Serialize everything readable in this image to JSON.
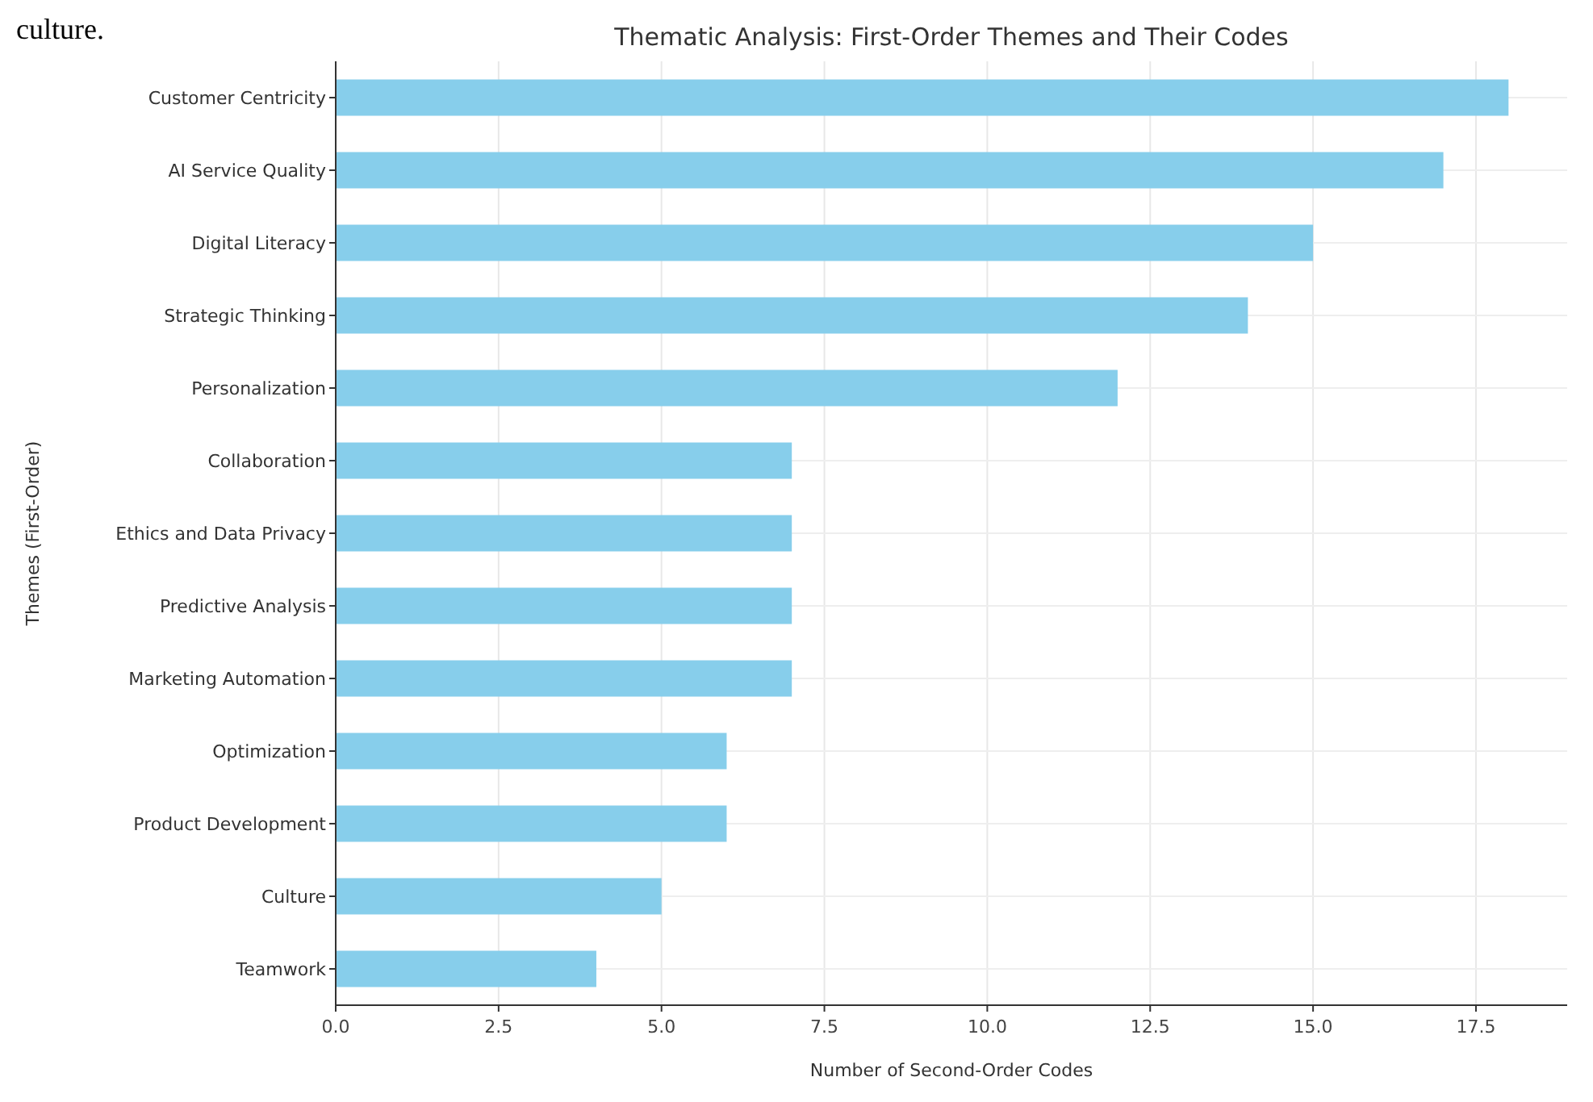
{
  "chart_data": {
    "type": "bar",
    "orientation": "horizontal",
    "title": "Thematic Analysis: First-Order Themes and Their Codes",
    "xlabel": "Number of Second-Order Codes",
    "ylabel": "Themes (First-Order)",
    "categories": [
      "Customer Centricity",
      "AI Service Quality",
      "Digital Literacy",
      "Strategic Thinking",
      "Personalization",
      "Collaboration",
      "Ethics and Data Privacy",
      "Predictive Analysis",
      "Marketing Automation",
      "Optimization",
      "Product Development",
      "Culture",
      "Teamwork"
    ],
    "values": [
      18,
      17,
      15,
      14,
      12,
      7,
      7,
      7,
      7,
      6,
      6,
      5,
      4
    ],
    "color": "#87ceeb",
    "xlim": [
      0,
      18.9
    ],
    "xticks": [
      {
        "value": 0,
        "label": "0.0"
      },
      {
        "value": 2.5,
        "label": "2.5"
      },
      {
        "value": 5,
        "label": "5.0"
      },
      {
        "value": 7.5,
        "label": "7.5"
      },
      {
        "value": 10,
        "label": "10.0"
      },
      {
        "value": 12.5,
        "label": "12.5"
      },
      {
        "value": 15,
        "label": "15.0"
      },
      {
        "value": 17.5,
        "label": "17.5"
      }
    ],
    "grid": true,
    "annotations": [
      "culture."
    ]
  }
}
